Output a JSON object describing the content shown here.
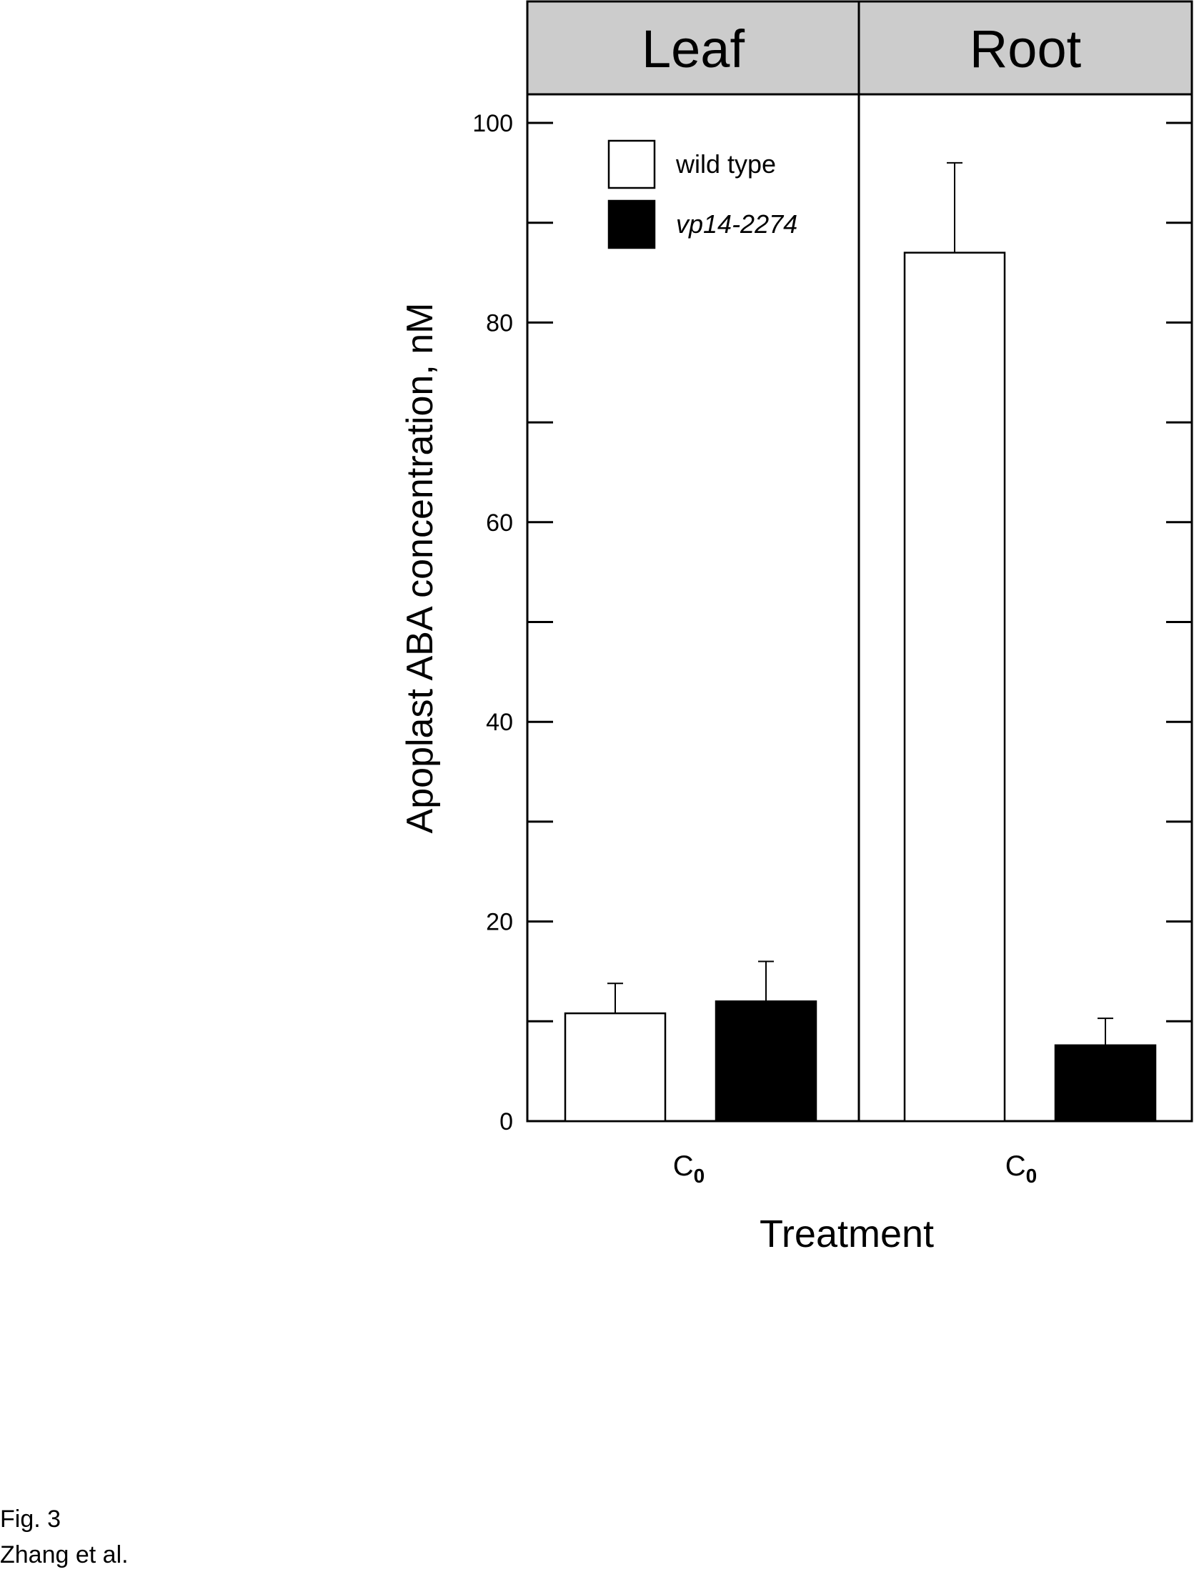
{
  "chart_data": {
    "type": "bar",
    "panels": [
      "Leaf",
      "Root"
    ],
    "categories": [
      "C0",
      "C0"
    ],
    "category_subscript": "0",
    "category_base": "C",
    "series": [
      {
        "name": "wild type",
        "name_style": "normal",
        "fill": "#ffffff",
        "values": [
          10.8,
          87.0
        ],
        "errors": [
          3.0,
          9.0
        ]
      },
      {
        "name": "vp14-2274",
        "name_style": "italic",
        "fill": "#000000",
        "values": [
          12.0,
          7.6
        ],
        "errors": [
          4.0,
          2.7
        ]
      }
    ],
    "xlabel": "Treatment",
    "ylabel": "Apoplast ABA concentration, nM",
    "ylim": [
      0,
      100
    ],
    "yticks_major": [
      0,
      20,
      40,
      60,
      80,
      100
    ],
    "yticks_minor": [
      10,
      30,
      50,
      70,
      90
    ],
    "legend_position": "top-left",
    "panel_header_color": "#cccccc",
    "grid": false
  },
  "caption": {
    "line1": "Fig. 3",
    "line2": "Zhang et al."
  }
}
